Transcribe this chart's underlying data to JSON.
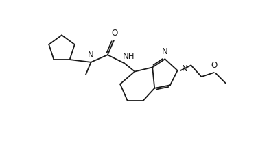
{
  "bg_color": "#ffffff",
  "line_color": "#1a1a1a",
  "line_width": 1.3,
  "font_size": 8.5,
  "figsize": [
    3.92,
    2.25
  ],
  "dpi": 100,
  "xlim": [
    0,
    10
  ],
  "ylim": [
    0,
    5.7
  ]
}
